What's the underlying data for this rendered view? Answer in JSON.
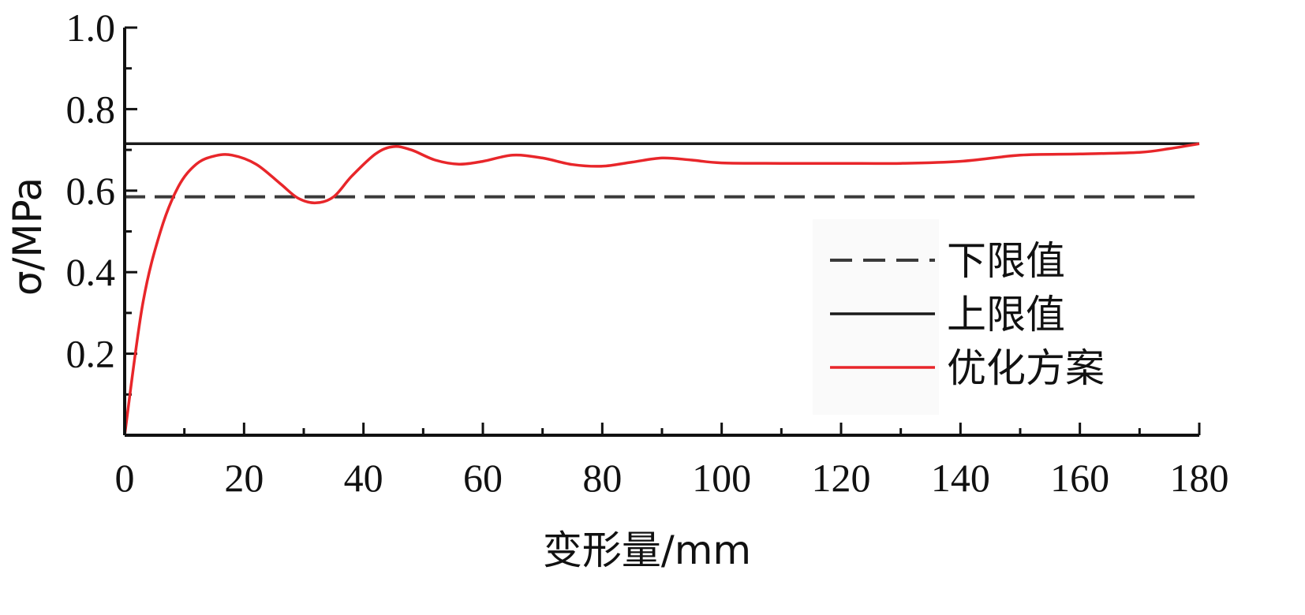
{
  "chart_data": {
    "type": "line",
    "xlabel": "变形量/mm",
    "ylabel": "σ/MPa",
    "xlim": [
      0,
      180
    ],
    "ylim": [
      0,
      1.0
    ],
    "x_ticks": [
      "0",
      "20",
      "40",
      "60",
      "80",
      "100",
      "120",
      "140",
      "160",
      "180"
    ],
    "y_ticks": [
      "0.2",
      "0.4",
      "0.6",
      "0.8",
      "1.0"
    ],
    "grid": false,
    "legend_position": "right",
    "series": [
      {
        "name": "下限值",
        "style": "dashed",
        "color": "#3a3a3a",
        "x": [
          0,
          180
        ],
        "y": [
          0.585,
          0.585
        ]
      },
      {
        "name": "上限值",
        "style": "solid",
        "color": "#1a1a1a",
        "x": [
          0,
          180
        ],
        "y": [
          0.715,
          0.715
        ]
      },
      {
        "name": "优化方案",
        "style": "solid",
        "color": "#e8262a",
        "x": [
          0,
          3,
          6,
          9,
          12,
          15,
          18,
          22,
          26,
          29,
          32,
          35,
          38,
          42,
          45,
          48,
          52,
          56,
          60,
          65,
          70,
          75,
          80,
          85,
          90,
          95,
          100,
          110,
          120,
          130,
          140,
          150,
          160,
          170,
          175,
          180
        ],
        "y": [
          0.0,
          0.32,
          0.5,
          0.61,
          0.665,
          0.685,
          0.687,
          0.665,
          0.618,
          0.582,
          0.57,
          0.585,
          0.635,
          0.69,
          0.708,
          0.7,
          0.675,
          0.665,
          0.672,
          0.687,
          0.68,
          0.664,
          0.66,
          0.67,
          0.68,
          0.675,
          0.668,
          0.667,
          0.667,
          0.667,
          0.672,
          0.687,
          0.69,
          0.694,
          0.703,
          0.715
        ]
      }
    ]
  }
}
